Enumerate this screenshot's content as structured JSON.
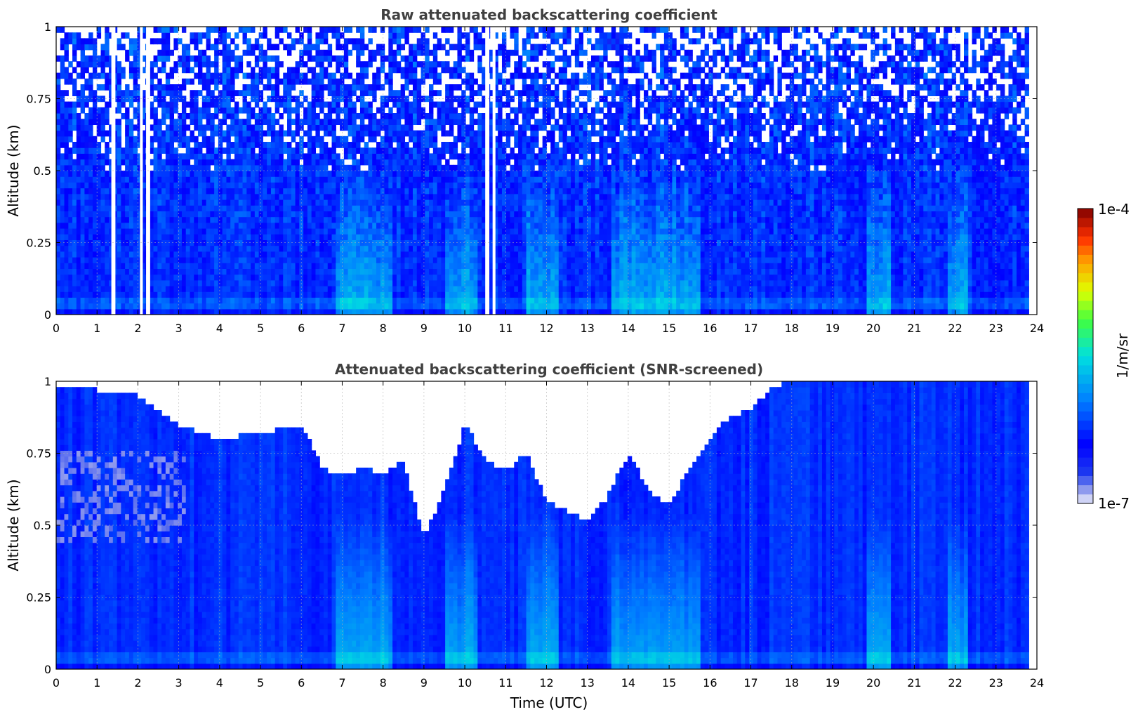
{
  "chart_data": [
    {
      "type": "heatmap",
      "title": "Raw attenuated backscattering coefficient",
      "xlabel": "",
      "ylabel": "Altitude (km)",
      "xlim": [
        0,
        24
      ],
      "ylim": [
        0,
        1
      ],
      "xticks": [
        0,
        1,
        2,
        3,
        4,
        5,
        6,
        7,
        8,
        9,
        10,
        11,
        12,
        13,
        14,
        15,
        16,
        17,
        18,
        19,
        20,
        21,
        22,
        23,
        24
      ],
      "yticks": [
        0,
        0.25,
        0.5,
        0.75,
        1
      ],
      "ytick_labels": [
        "0",
        "0.25",
        "0.5",
        "0.75",
        "1"
      ],
      "grid": true,
      "data_end_hour": 23.8,
      "gap_hours": [
        [
          1.35,
          1.45
        ],
        [
          2.05,
          2.12
        ],
        [
          2.2,
          2.3
        ],
        [
          10.5,
          10.6
        ],
        [
          10.68,
          10.75
        ]
      ],
      "features": {
        "noise_above_km": 0.5,
        "enhanced_bands_hours": [
          [
            6.8,
            8.2
          ],
          [
            9.5,
            10.3
          ],
          [
            11.5,
            12.3
          ],
          [
            13.6,
            15.8
          ],
          [
            19.8,
            20.4
          ],
          [
            21.8,
            22.3
          ]
        ]
      }
    },
    {
      "type": "heatmap",
      "title": "Attenuated backscattering coefficient (SNR-screened)",
      "xlabel": "Time (UTC)",
      "ylabel": "Altitude (km)",
      "xlim": [
        0,
        24
      ],
      "ylim": [
        0,
        1
      ],
      "xticks": [
        0,
        1,
        2,
        3,
        4,
        5,
        6,
        7,
        8,
        9,
        10,
        11,
        12,
        13,
        14,
        15,
        16,
        17,
        18,
        19,
        20,
        21,
        22,
        23,
        24
      ],
      "yticks": [
        0,
        0.25,
        0.5,
        0.75,
        1
      ],
      "ytick_labels": [
        "0",
        "0.25",
        "0.5",
        "0.75",
        "1"
      ],
      "grid": true,
      "data_end_hour": 23.8,
      "screened_top_profile_km": [
        [
          0,
          0.98
        ],
        [
          1,
          0.97
        ],
        [
          2,
          0.95
        ],
        [
          3,
          0.85
        ],
        [
          4,
          0.8
        ],
        [
          5,
          0.82
        ],
        [
          6,
          0.85
        ],
        [
          6.5,
          0.7
        ],
        [
          7,
          0.67
        ],
        [
          7.5,
          0.7
        ],
        [
          8,
          0.68
        ],
        [
          8.5,
          0.72
        ],
        [
          9,
          0.46
        ],
        [
          9.5,
          0.62
        ],
        [
          10,
          0.85
        ],
        [
          10.5,
          0.73
        ],
        [
          11,
          0.69
        ],
        [
          11.5,
          0.75
        ],
        [
          12,
          0.58
        ],
        [
          12.5,
          0.55
        ],
        [
          13,
          0.52
        ],
        [
          13.5,
          0.6
        ],
        [
          14,
          0.75
        ],
        [
          14.5,
          0.62
        ],
        [
          15,
          0.57
        ],
        [
          15.5,
          0.7
        ],
        [
          16,
          0.8
        ],
        [
          16.5,
          0.88
        ],
        [
          17,
          0.9
        ],
        [
          17.5,
          0.98
        ],
        [
          18,
          1.0
        ],
        [
          24,
          1.0
        ]
      ],
      "features": {
        "aerosol_layer_hours": [
          0,
          3.2
        ],
        "aerosol_layer_km": [
          0.45,
          0.75
        ],
        "enhanced_bands_hours": [
          [
            6.8,
            8.2
          ],
          [
            9.5,
            10.3
          ],
          [
            11.5,
            12.3
          ],
          [
            13.6,
            15.8
          ],
          [
            19.8,
            20.4
          ],
          [
            21.8,
            22.3
          ]
        ]
      }
    }
  ],
  "colorbar": {
    "label": "1/m/sr",
    "max_label": "1e-4",
    "min_label": "1e-7",
    "scale": "log",
    "colormap": "jet"
  }
}
